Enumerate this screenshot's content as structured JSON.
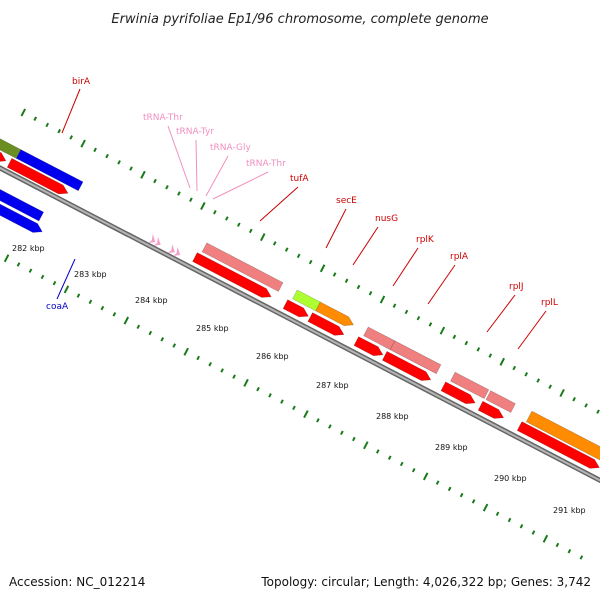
{
  "title": "Erwinia pyrifoliae Ep1/96 chromosome, complete genome",
  "footer": {
    "accession": "Accession: NC_012214",
    "summary": "Topology: circular; Length: 4,026,322 bp; Genes: 3,742"
  },
  "scale_labels": [
    "282 kbp",
    "283 kbp",
    "284 kbp",
    "285 kbp",
    "286 kbp",
    "287 kbp",
    "288 kbp",
    "289 kbp",
    "290 kbp",
    "291 kbp"
  ],
  "colors": {
    "backbone": "#8a8a8a",
    "tick": "#1a7a1a",
    "cds": "#ff0000",
    "gene_light": "#f08080",
    "gene_blue": "#0000ee",
    "gene_orange": "#ff8c00",
    "gene_lime": "#adff2f",
    "gene_olive": "#6b8e23",
    "trna": "#f4a0c8",
    "label_red": "#cc0000",
    "label_blue": "#0000cc",
    "label_pink": "#f090c0"
  },
  "gene_labels": [
    {
      "text": "birA",
      "color": "label_red"
    },
    {
      "text": "coaA",
      "color": "label_blue"
    },
    {
      "text": "tRNA-Thr",
      "color": "label_pink"
    },
    {
      "text": "tRNA-Tyr",
      "color": "label_pink"
    },
    {
      "text": "tRNA-Gly",
      "color": "label_pink"
    },
    {
      "text": "tRNA-Thr",
      "color": "label_pink"
    },
    {
      "text": "tufA",
      "color": "label_red"
    },
    {
      "text": "secE",
      "color": "label_red"
    },
    {
      "text": "nusG",
      "color": "label_red"
    },
    {
      "text": "rplK",
      "color": "label_red"
    },
    {
      "text": "rplA",
      "color": "label_red"
    },
    {
      "text": "rplJ",
      "color": "label_red"
    },
    {
      "text": "rplL",
      "color": "label_red"
    }
  ]
}
